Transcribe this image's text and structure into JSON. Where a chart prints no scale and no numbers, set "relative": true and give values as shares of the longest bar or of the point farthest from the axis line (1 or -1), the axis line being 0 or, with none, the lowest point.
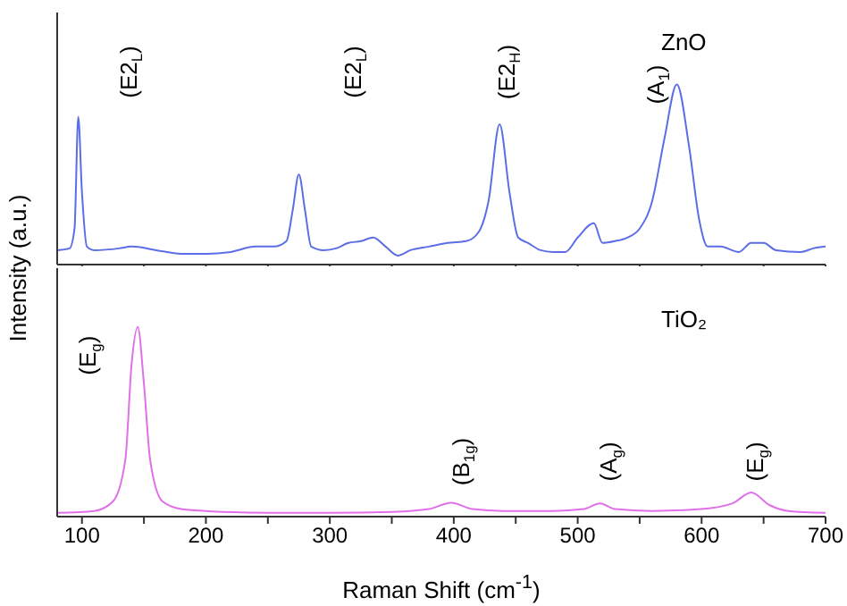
{
  "chart_data": [
    {
      "type": "line",
      "relative": true,
      "xlim": [
        80,
        700
      ],
      "xticks": [
        100,
        {
          "value": 150,
          "label": null
        },
        200,
        {
          "value": 250,
          "label": null
        },
        300,
        {
          "value": 350,
          "label": null
        },
        400,
        {
          "value": 450,
          "label": null
        },
        500,
        {
          "value": 550,
          "label": null
        },
        600,
        {
          "value": 650,
          "label": null
        },
        700
      ],
      "tick_labels": false,
      "ylabel": "Intensity (a.u.)",
      "marker": "none",
      "series": [
        {
          "name": "ZnO",
          "color": "#5b6ee8",
          "x": [
            80,
            90,
            94,
            97,
            100,
            104,
            110,
            130,
            140,
            160,
            180,
            200,
            220,
            240,
            255,
            265,
            270,
            275,
            280,
            285,
            295,
            305,
            315,
            325,
            335,
            345,
            355,
            365,
            380,
            395,
            410,
            420,
            428,
            437,
            445,
            452,
            460,
            470,
            480,
            490,
            500,
            513,
            520,
            530,
            540,
            550,
            560,
            570,
            580,
            590,
            598,
            605,
            615,
            630,
            640,
            650,
            660,
            680,
            690,
            700
          ],
          "values": [
            0.08,
            0.09,
            0.2,
            0.82,
            0.4,
            0.1,
            0.08,
            0.09,
            0.1,
            0.08,
            0.06,
            0.06,
            0.07,
            0.1,
            0.1,
            0.13,
            0.3,
            0.5,
            0.3,
            0.1,
            0.08,
            0.09,
            0.12,
            0.13,
            0.15,
            0.1,
            0.05,
            0.08,
            0.1,
            0.12,
            0.13,
            0.18,
            0.35,
            0.78,
            0.4,
            0.15,
            0.12,
            0.08,
            0.07,
            0.07,
            0.15,
            0.23,
            0.12,
            0.13,
            0.15,
            0.2,
            0.35,
            0.7,
            1.0,
            0.65,
            0.25,
            0.1,
            0.1,
            0.07,
            0.12,
            0.12,
            0.08,
            0.07,
            0.09,
            0.1
          ]
        }
      ],
      "annotations": [
        "(E2$_{L}$)",
        "(E2$_{L}$)",
        "(E2$_{H}$)",
        "(A$_{1}$)"
      ]
    },
    {
      "type": "line",
      "relative": true,
      "xlim": [
        80,
        700
      ],
      "xticks": [
        100,
        {
          "value": 150,
          "label": null
        },
        200,
        {
          "value": 250,
          "label": null
        },
        300,
        {
          "value": 350,
          "label": null
        },
        400,
        {
          "value": 450,
          "label": null
        },
        500,
        {
          "value": 550,
          "label": null
        },
        600,
        {
          "value": 650,
          "label": null
        },
        700
      ],
      "tick_labels": "x",
      "xlabel": "Raman Shift (cm$^{-1}$)",
      "marker": "none",
      "series": [
        {
          "name": "TiO₂",
          "color": "#e070e8",
          "x": [
            80,
            110,
            125,
            135,
            140,
            145,
            150,
            155,
            165,
            180,
            200,
            250,
            300,
            350,
            380,
            398,
            415,
            440,
            480,
            505,
            518,
            530,
            560,
            600,
            625,
            640,
            655,
            670,
            700
          ],
          "values": [
            0.02,
            0.03,
            0.08,
            0.3,
            0.8,
            1.0,
            0.7,
            0.3,
            0.08,
            0.04,
            0.03,
            0.02,
            0.02,
            0.025,
            0.04,
            0.073,
            0.04,
            0.03,
            0.03,
            0.04,
            0.07,
            0.04,
            0.03,
            0.04,
            0.07,
            0.127,
            0.06,
            0.03,
            0.02
          ]
        }
      ],
      "annotations": [
        "(E$_{g}$)",
        "(B$_{1g}$)",
        "(A$_{g}$)",
        "(E$_{g}$)"
      ]
    }
  ]
}
